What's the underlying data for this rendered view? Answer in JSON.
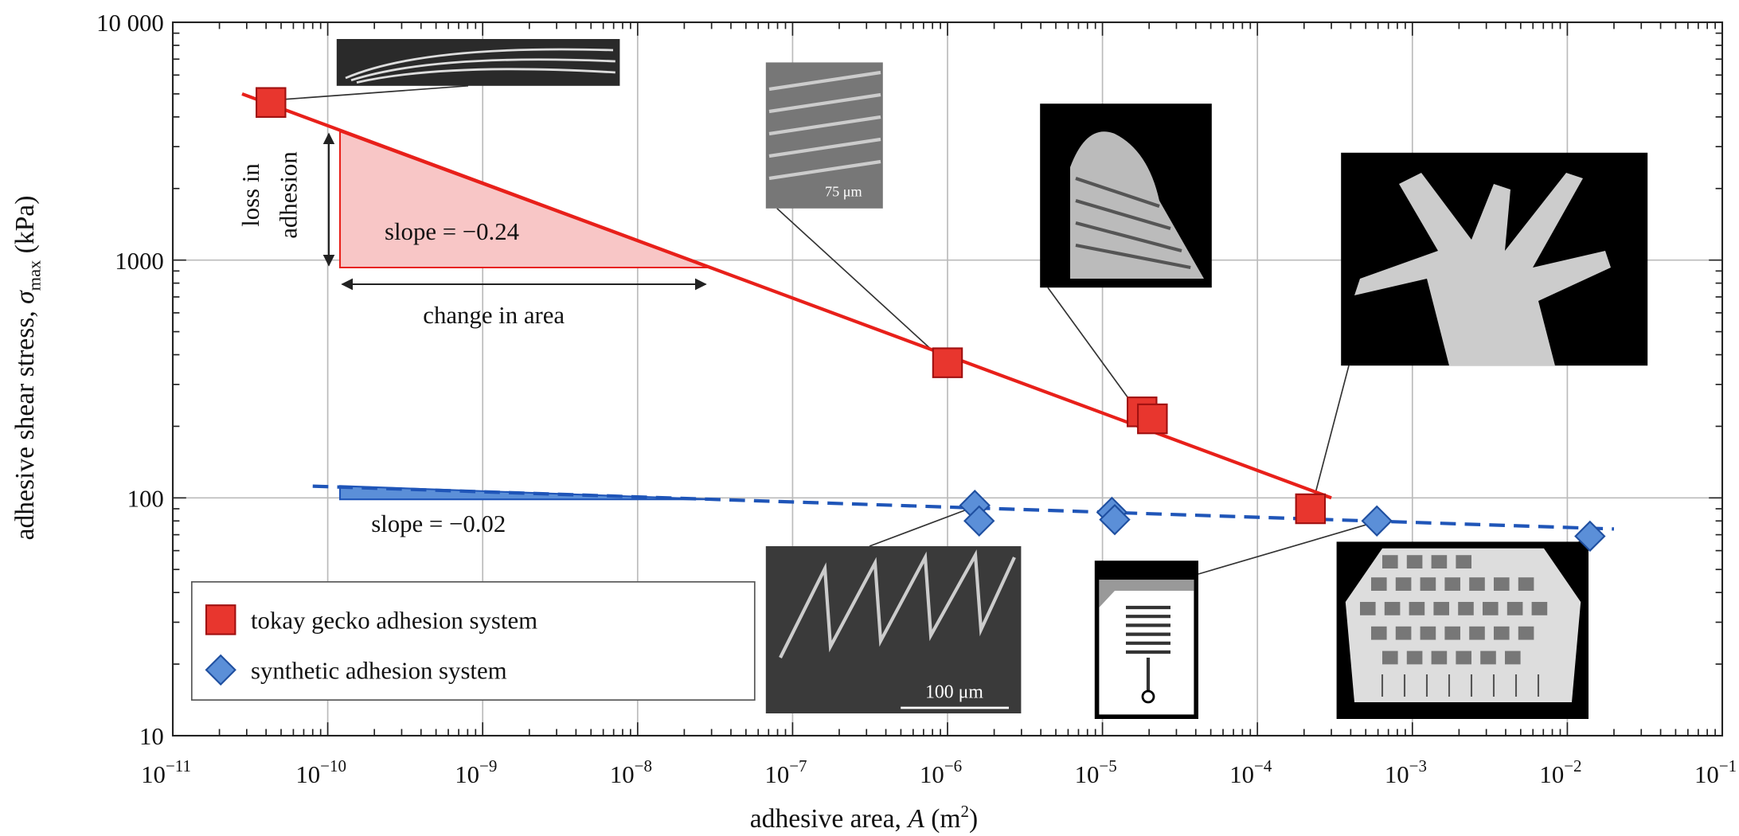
{
  "chart_data": {
    "type": "scatter",
    "xlabel_parts": [
      "adhesive area, ",
      "A",
      " (m",
      "2",
      ")"
    ],
    "ylabel_parts": [
      "adhesive shear stress, ",
      "σ",
      "max",
      " (kPa)"
    ],
    "log_x": true,
    "log_y": true,
    "grid": true,
    "legend": "lower left",
    "xlim": [
      1e-11,
      0.1
    ],
    "ylim": [
      10,
      10000
    ],
    "xticks": [
      {
        "value": 1e-11,
        "label": "10",
        "exponent": "−11"
      },
      {
        "value": 1e-10,
        "label": "10",
        "exponent": "−10"
      },
      {
        "value": 1e-09,
        "label": "10",
        "exponent": "−9"
      },
      {
        "value": 1e-08,
        "label": "10",
        "exponent": "−8"
      },
      {
        "value": 1e-07,
        "label": "10",
        "exponent": "−7"
      },
      {
        "value": 1e-06,
        "label": "10",
        "exponent": "−6"
      },
      {
        "value": 1e-05,
        "label": "10",
        "exponent": "−5"
      },
      {
        "value": 0.0001,
        "label": "10",
        "exponent": "−4"
      },
      {
        "value": 0.001,
        "label": "10",
        "exponent": "−3"
      },
      {
        "value": 0.01,
        "label": "10",
        "exponent": "−2"
      },
      {
        "value": 0.1,
        "label": "10",
        "exponent": "−1"
      }
    ],
    "yticks": [
      10,
      100,
      1000,
      {
        "value": 10000,
        "label": "10 000"
      }
    ],
    "series": [
      {
        "name": "tokay gecko adhesion system",
        "color": "#e8362e",
        "marker": "square",
        "x": [
          4.3e-11,
          1e-06,
          1.8e-05,
          2.1e-05,
          0.00022
        ],
        "values": [
          4600,
          370,
          230,
          215,
          90
        ]
      },
      {
        "name": "synthetic adhesion system",
        "color": "#5b8fd8",
        "marker": "diamond",
        "x": [
          1.5e-06,
          1.6e-06,
          1.15e-05,
          1.2e-05,
          0.00059,
          0.014
        ],
        "values": [
          93,
          80,
          87,
          81,
          80,
          69
        ]
      }
    ],
    "fit_lines": [
      {
        "color": "#e8201a",
        "dashed": false,
        "x": [
          2.8e-11,
          0.0003
        ],
        "values": [
          5000,
          100
        ]
      },
      {
        "color": "#1f55b8",
        "dashed": true,
        "x": [
          8e-11,
          0.02
        ],
        "values": [
          112,
          74
        ]
      }
    ],
    "annotations": {
      "loss_line1": "loss in",
      "loss_line2": "adhesion",
      "slope_gecko": "slope = −0.24",
      "change_area": "change in area",
      "slope_synthetic": "slope = −0.02",
      "scale_75": "75 μm",
      "scale_100": "100 μm"
    }
  }
}
